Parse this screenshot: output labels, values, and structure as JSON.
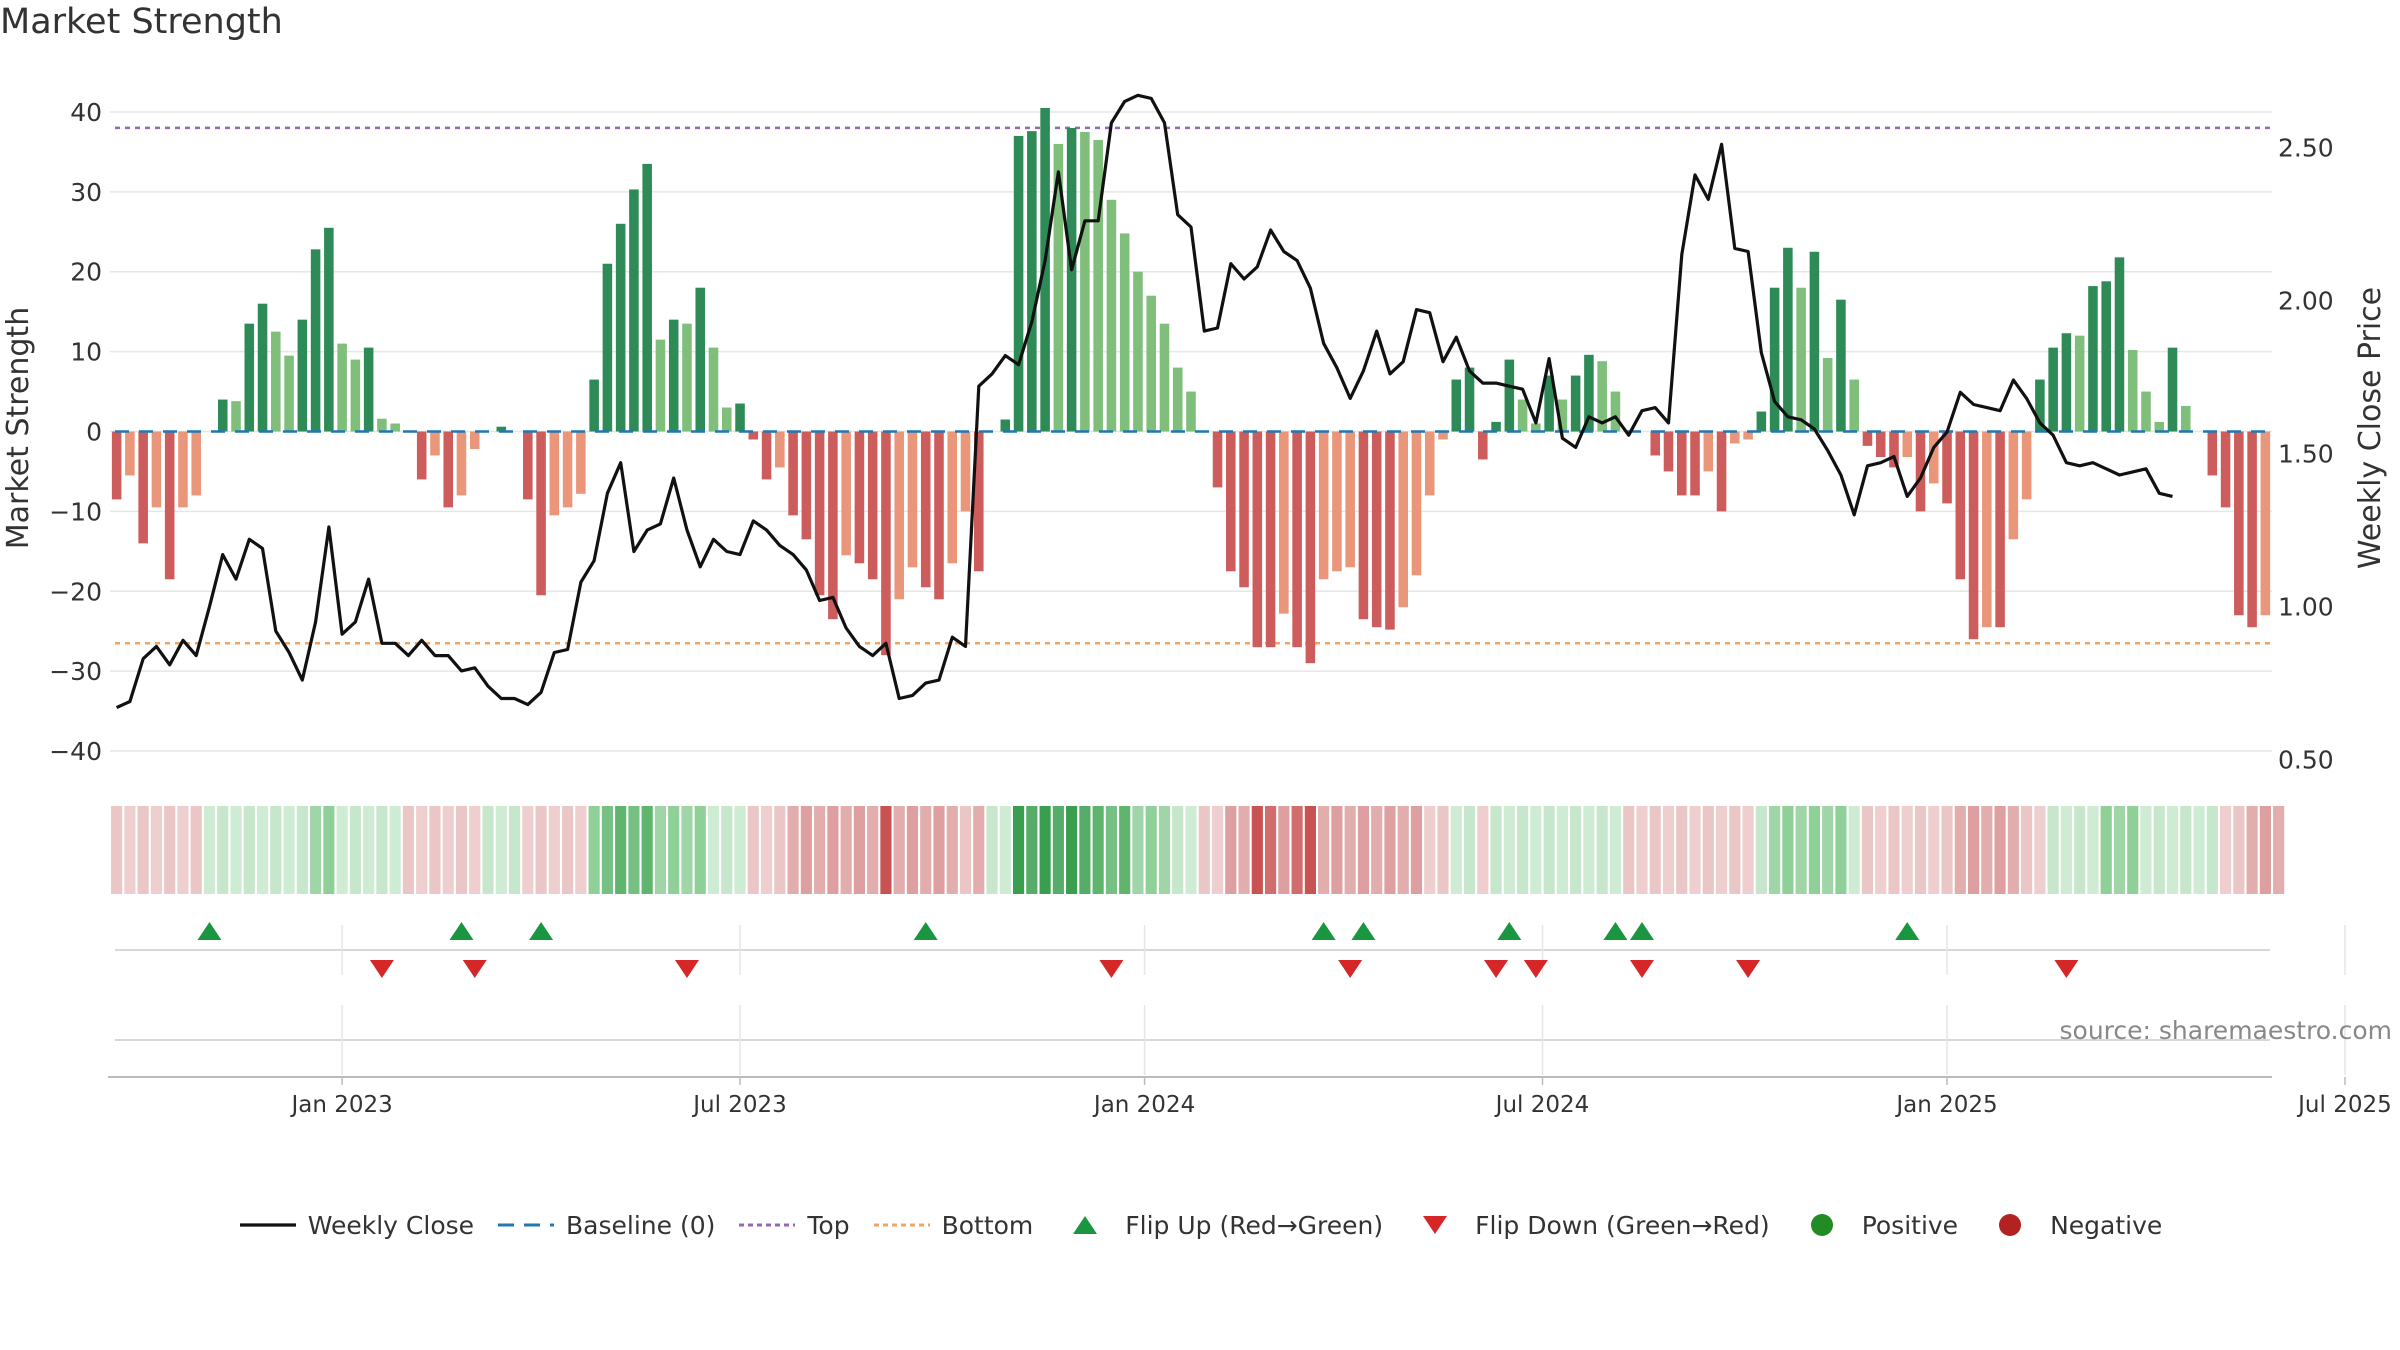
{
  "title": "Market Strength",
  "source": "source: sharemaestro.com",
  "colors": {
    "dark_green": "#2e8b57",
    "light_green": "#7fbf7b",
    "dark_red": "#cd5c5c",
    "light_red": "#e9967a",
    "close_line": "#111111",
    "baseline": "#1f77b4",
    "top": "#9467bd",
    "bottom": "#f4a460",
    "flip_up": "#1a9641",
    "flip_down": "#d62728",
    "positive": "#228b22",
    "negative": "#b22222",
    "grid": "#e6e6e6"
  },
  "chart_data": {
    "type": "bar",
    "title": "Market Strength",
    "ylabel": "Market Strength",
    "ylabel_right": "Weekly Close Price",
    "ylim": [
      -43,
      44
    ],
    "ylim_right": [
      0.45,
      2.72
    ],
    "yticks": [
      "40",
      "30",
      "20",
      "10",
      "0",
      "−10",
      "−20",
      "−30",
      "−40"
    ],
    "yticks_values": [
      40,
      30,
      20,
      10,
      0,
      -10,
      -20,
      -30,
      -40
    ],
    "yticks_right": [
      "2.50",
      "2.00",
      "1.50",
      "1.00",
      "0.50"
    ],
    "yticks_right_values": [
      2.5,
      2.0,
      1.5,
      1.0,
      0.5
    ],
    "x_ticks": [
      "Jan 2023",
      "Jul 2023",
      "Jan 2024",
      "Jul 2024",
      "Jan 2025",
      "Jul 2025"
    ],
    "x_ticks_week_index": [
      17,
      47,
      77.5,
      107.5,
      138,
      168
    ],
    "top_line": 38,
    "bottom_line": -26.5,
    "baseline": 0,
    "strength": [
      -8.5,
      -5.5,
      -14,
      -9.5,
      -18.5,
      -9.5,
      -8,
      0,
      4,
      3.8,
      13.5,
      16,
      12.5,
      9.5,
      14,
      22.8,
      25.5,
      11,
      9,
      10.5,
      1.6,
      1,
      0,
      -6,
      -3,
      -9.5,
      -8,
      -2.2,
      0,
      0.6,
      0,
      -8.5,
      -20.5,
      -10.5,
      -9.5,
      -7.8,
      6.5,
      21,
      26,
      30.3,
      33.5,
      11.5,
      14,
      13.5,
      18,
      10.5,
      3,
      3.5,
      -1,
      -6,
      -4.5,
      -10.5,
      -13.5,
      -20.5,
      -23.5,
      -15.5,
      -16.5,
      -18.5,
      -28,
      -21,
      -17,
      -19.5,
      -21,
      -16.5,
      -10,
      -17.5,
      0,
      1.5,
      37,
      37.6,
      40.5,
      36,
      38,
      37.5,
      36.5,
      29,
      24.8,
      20,
      17,
      13.5,
      8,
      5,
      0,
      -7,
      -17.5,
      -19.5,
      -27,
      -27,
      -22.8,
      -27,
      -29,
      -18.5,
      -17.5,
      -17,
      -23.5,
      -24.5,
      -24.8,
      -22,
      -18,
      -8,
      -1,
      6.5,
      8,
      -3.5,
      1.2,
      9,
      4,
      1,
      7,
      4,
      7,
      9.6,
      8.8,
      5,
      0,
      0,
      -3,
      -5,
      -8,
      -8,
      -5,
      -10,
      -1.5,
      -1,
      2.5,
      18,
      23,
      18,
      22.5,
      9.2,
      16.5,
      6.5,
      -1.8,
      -3.2,
      -4.5,
      -3.2,
      -10,
      -6.5,
      -9,
      -18.5,
      -26,
      -24.5,
      -24.5,
      -13.5,
      -8.5,
      6.5,
      10.5,
      12.3,
      12,
      18.2,
      18.8,
      21.8,
      10.2,
      5,
      1.2,
      10.5,
      3.2,
      0,
      -5.5,
      -9.5,
      -23,
      -24.5,
      -23
    ],
    "weekly_close": [
      0.67,
      0.69,
      0.83,
      0.87,
      0.81,
      0.89,
      0.84,
      1.0,
      1.17,
      1.09,
      1.22,
      1.19,
      0.92,
      0.85,
      0.76,
      0.95,
      1.26,
      0.91,
      0.95,
      1.09,
      0.88,
      0.88,
      0.84,
      0.89,
      0.84,
      0.84,
      0.79,
      0.8,
      0.74,
      0.7,
      0.7,
      0.68,
      0.72,
      0.85,
      0.86,
      1.08,
      1.15,
      1.37,
      1.47,
      1.18,
      1.25,
      1.27,
      1.42,
      1.25,
      1.13,
      1.22,
      1.18,
      1.17,
      1.28,
      1.25,
      1.2,
      1.17,
      1.12,
      1.02,
      1.03,
      0.93,
      0.87,
      0.84,
      0.88,
      0.7,
      0.71,
      0.75,
      0.76,
      0.9,
      0.87,
      1.72,
      1.76,
      1.82,
      1.79,
      1.93,
      2.13,
      2.42,
      2.1,
      2.26,
      2.26,
      2.58,
      2.65,
      2.67,
      2.66,
      2.58,
      2.28,
      2.24,
      1.9,
      1.91,
      2.12,
      2.07,
      2.11,
      2.23,
      2.16,
      2.13,
      2.04,
      1.86,
      1.78,
      1.68,
      1.77,
      1.9,
      1.76,
      1.8,
      1.97,
      1.96,
      1.8,
      1.88,
      1.77,
      1.73,
      1.73,
      1.72,
      1.71,
      1.6,
      1.81,
      1.55,
      1.52,
      1.62,
      1.6,
      1.62,
      1.56,
      1.64,
      1.65,
      1.6,
      2.15,
      2.41,
      2.33,
      2.51,
      2.17,
      2.16,
      1.83,
      1.67,
      1.62,
      1.61,
      1.58,
      1.51,
      1.43,
      1.3,
      1.46,
      1.47,
      1.49,
      1.36,
      1.42,
      1.52,
      1.57,
      1.7,
      1.66,
      1.65,
      1.64,
      1.74,
      1.68,
      1.6,
      1.56,
      1.47,
      1.46,
      1.47,
      1.45,
      1.43,
      1.44,
      1.45,
      1.37,
      1.36
    ],
    "heat_bands": [
      -1,
      -1,
      -1,
      -1,
      -1,
      -1,
      -1,
      1,
      1,
      1,
      1,
      1,
      1,
      1,
      1,
      2,
      2,
      1,
      1,
      1,
      1,
      1,
      -1,
      -1,
      -1,
      -1,
      -1,
      -1,
      1,
      1,
      1,
      -1,
      -1,
      -1,
      -1,
      -1,
      2,
      3,
      3,
      3,
      3,
      2,
      2,
      2,
      2,
      1,
      1,
      1,
      -1,
      -1,
      -1,
      -2,
      -2,
      -2,
      -2,
      -2,
      -2,
      -2,
      -3,
      -2,
      -2,
      -2,
      -2,
      -2,
      -1,
      -2,
      1,
      1,
      4,
      4,
      4,
      4,
      4,
      4,
      3,
      3,
      3,
      2,
      2,
      2,
      1,
      1,
      -1,
      -1,
      -2,
      -2,
      -3,
      -3,
      -2,
      -3,
      -3,
      -2,
      -2,
      -2,
      -2,
      -2,
      -2,
      -2,
      -2,
      -1,
      -1,
      1,
      1,
      -1,
      1,
      1,
      1,
      1,
      1,
      1,
      1,
      1,
      1,
      1,
      -1,
      -1,
      -1,
      -1,
      -1,
      -1,
      -1,
      -1,
      -1,
      -1,
      1,
      2,
      2,
      2,
      2,
      2,
      2,
      1,
      -1,
      -1,
      -1,
      -1,
      -1,
      -1,
      -1,
      -2,
      -2,
      -2,
      -2,
      -2,
      -1,
      -1,
      1,
      1,
      1,
      1,
      2,
      2,
      2,
      1,
      1,
      1,
      1,
      1,
      1,
      -1,
      -1,
      -2,
      -2,
      -2
    ],
    "flip_up_weeks": [
      7,
      26,
      32,
      61,
      91,
      94,
      105,
      113,
      115,
      135
    ],
    "flip_down_weeks": [
      20,
      27,
      43,
      75,
      93,
      104,
      107,
      115,
      123,
      147
    ],
    "x_grid_weeks": [
      17,
      47,
      77.5,
      107.5,
      138,
      168
    ]
  },
  "legend": [
    {
      "key": "close",
      "label": "Weekly Close",
      "shape": "line"
    },
    {
      "key": "baseline",
      "label": "Baseline (0)",
      "shape": "dash"
    },
    {
      "key": "top",
      "label": "Top",
      "shape": "dot"
    },
    {
      "key": "bottom",
      "label": "Bottom",
      "shape": "dot"
    },
    {
      "key": "flip_up",
      "label": "Flip Up (Red→Green)",
      "shape": "tri-up"
    },
    {
      "key": "flip_down",
      "label": "Flip Down (Green→Red)",
      "shape": "tri-down"
    },
    {
      "key": "positive",
      "label": "Positive",
      "shape": "circle"
    },
    {
      "key": "negative",
      "label": "Negative",
      "shape": "circle"
    }
  ]
}
